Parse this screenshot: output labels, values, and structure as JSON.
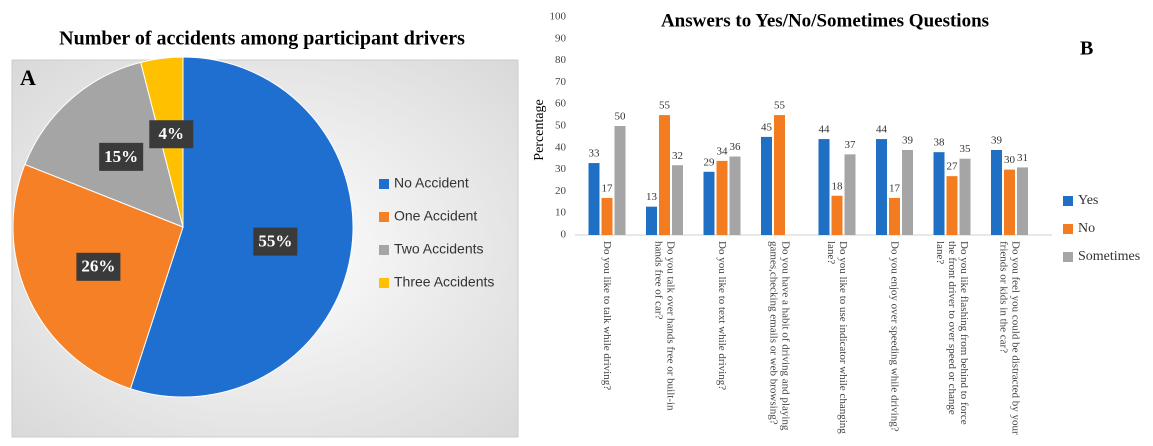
{
  "chart_data": [
    {
      "type": "pie",
      "title": "Number of accidents among participant drivers",
      "label": "A",
      "categories": [
        "No Accident",
        "One Accident",
        "Two Accidents",
        "Three Accidents"
      ],
      "values": [
        55,
        26,
        15,
        4
      ],
      "value_labels": [
        "55%",
        "26%",
        "15%",
        "4%"
      ],
      "colors": [
        "#1f6fd0",
        "#f58025",
        "#a5a5a5",
        "#ffc000"
      ]
    },
    {
      "type": "bar",
      "title": "Answers to Yes/No/Sometimes Questions",
      "label": "B",
      "y_label": "Percentage",
      "categories": [
        "Do you like to talk while driving?",
        "Do you talk over hands free or built-in hands free of car?",
        "Do you like to text while driving?",
        "Do you have a habit of driving and playing games,checking emails or web browsing?",
        "Do you like to use indicator while changing lane?",
        "Do you enjoy over speeding while driving?",
        "Do you like flashing from behind to force the front driver to over speed or change lane?",
        "Do you feel you could be distracted by your friends or kids in the car?"
      ],
      "series": [
        {
          "name": "Yes",
          "color": "#1f6fc5",
          "values": [
            33,
            13,
            29,
            45,
            44,
            44,
            38,
            39
          ]
        },
        {
          "name": "No",
          "color": "#f47c20",
          "values": [
            17,
            55,
            34,
            55,
            18,
            17,
            27,
            30
          ]
        },
        {
          "name": "Sometimes",
          "color": "#a5a5a5",
          "values": [
            50,
            32,
            36,
            null,
            37,
            39,
            35,
            31
          ]
        }
      ],
      "ylim": [
        0,
        100
      ],
      "yticks": [
        0,
        10,
        20,
        30,
        40,
        50,
        60,
        70,
        80,
        90,
        100
      ]
    }
  ]
}
